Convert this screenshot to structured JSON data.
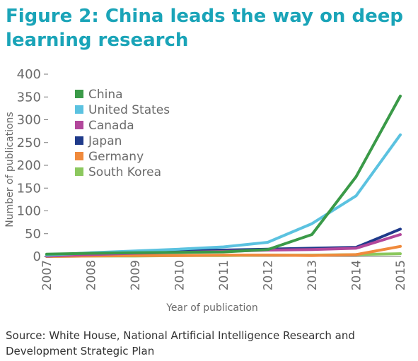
{
  "title": "Figure 2: China leads the way on deep learning research",
  "source": "Source: White House, National Artificial Intelligence Research and Development Strategic Plan",
  "chart_data": {
    "type": "line",
    "xlabel": "Year of publication",
    "ylabel": "Number of publications",
    "x": [
      "2007",
      "2008",
      "2009",
      "2010",
      "2011",
      "2012",
      "2013",
      "2014",
      "2015"
    ],
    "ylim": [
      0,
      400
    ],
    "yticks": [
      "0",
      "50",
      "100",
      "150",
      "200",
      "250",
      "300",
      "350",
      "400"
    ],
    "grid": false,
    "legend_position": "top-left",
    "series": [
      {
        "name": "China",
        "color": "#3a9a48",
        "values": [
          5,
          7,
          8,
          9,
          10,
          15,
          48,
          175,
          352
        ]
      },
      {
        "name": "United States",
        "color": "#5bc2e0",
        "values": [
          3,
          8,
          12,
          16,
          21,
          31,
          72,
          133,
          267
        ]
      },
      {
        "name": "Canada",
        "color": "#b2479b",
        "values": [
          1,
          4,
          7,
          9,
          11,
          14,
          15,
          18,
          48
        ]
      },
      {
        "name": "Japan",
        "color": "#1f3a8a",
        "values": [
          1,
          5,
          10,
          13,
          14,
          16,
          18,
          20,
          60
        ]
      },
      {
        "name": "Germany",
        "color": "#f08a3c",
        "values": [
          0,
          1,
          2,
          2,
          3,
          3,
          2,
          4,
          22
        ]
      },
      {
        "name": "South Korea",
        "color": "#8cc85e",
        "values": [
          0,
          1,
          1,
          2,
          2,
          3,
          3,
          4,
          6
        ]
      }
    ]
  }
}
